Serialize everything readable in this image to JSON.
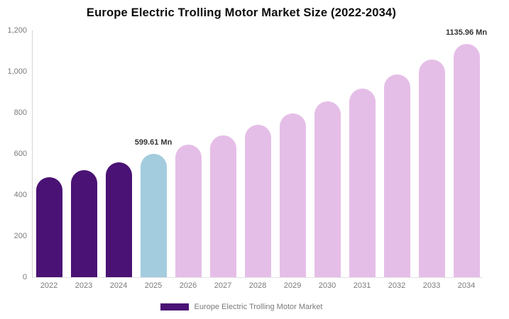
{
  "title": "Europe Electric Trolling Motor Market Size (2022-2034)",
  "colors": {
    "historical": "#4A1274",
    "current": "#A3CCDE",
    "forecast": "#E5BEE8",
    "axis_line": "#d4d4d4",
    "tick_text": "#7a7a7a",
    "annotation_text": "#333333",
    "title_text": "#0d0d0d",
    "background": "#ffffff"
  },
  "chart_data": {
    "type": "bar",
    "title": "Europe Electric Trolling Motor Market Size (2022-2034)",
    "xlabel": "",
    "ylabel": "",
    "unit": "Mn",
    "ylim": [
      0,
      1200
    ],
    "grid": false,
    "categories": [
      "2022",
      "2023",
      "2024",
      "2025",
      "2026",
      "2027",
      "2028",
      "2029",
      "2030",
      "2031",
      "2032",
      "2033",
      "2034"
    ],
    "values": [
      485,
      520,
      558,
      599.61,
      643.7,
      691.1,
      741.9,
      796.5,
      855.1,
      918,
      985.7,
      1058.2,
      1135.96
    ],
    "bar_color_roles": [
      "historical",
      "historical",
      "historical",
      "current",
      "forecast",
      "forecast",
      "forecast",
      "forecast",
      "forecast",
      "forecast",
      "forecast",
      "forecast",
      "forecast"
    ],
    "yticks": [
      {
        "value": 0,
        "label": "0"
      },
      {
        "value": 200,
        "label": "200"
      },
      {
        "value": 400,
        "label": "400"
      },
      {
        "value": 600,
        "label": "600"
      },
      {
        "value": 800,
        "label": "800"
      },
      {
        "value": 1000,
        "label": "1,000"
      },
      {
        "value": 1200,
        "label": "1,200"
      }
    ],
    "annotations": [
      {
        "category": "2025",
        "text": "599.61 Mn"
      },
      {
        "category": "2034",
        "text": "1135.96 Mn"
      }
    ],
    "legend": {
      "position": "bottom",
      "entries": [
        {
          "label": "Europe Electric Trolling Motor Market",
          "color": "#4A1274"
        }
      ]
    }
  }
}
